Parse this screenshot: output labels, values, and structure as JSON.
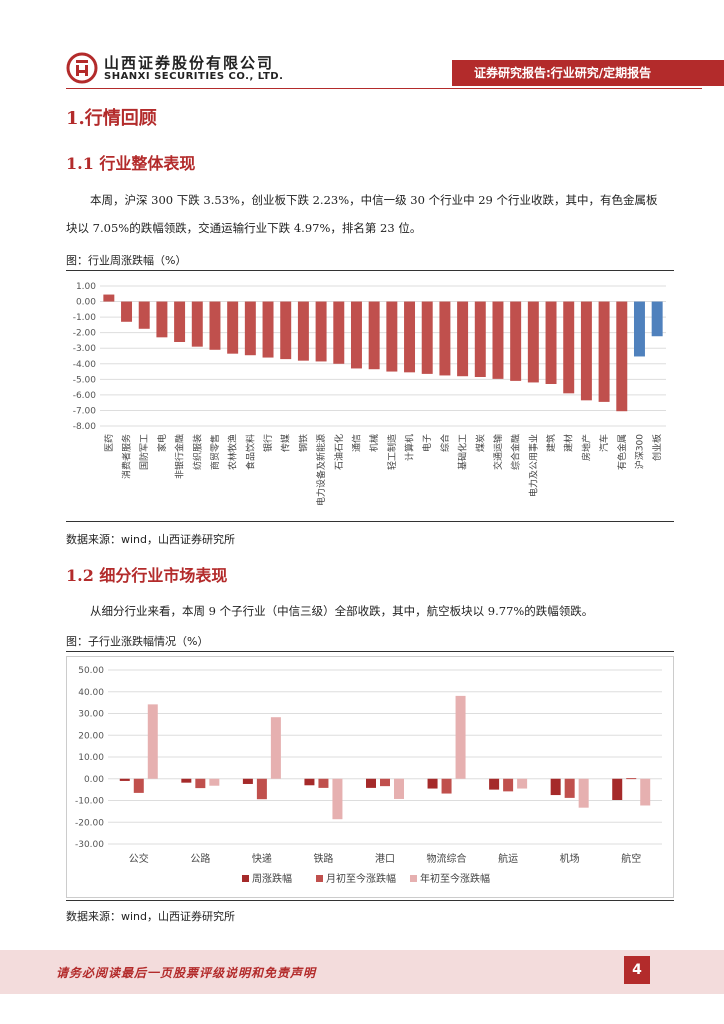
{
  "header": {
    "company_cn": "山西证券股份有限公司",
    "company_en": "SHANXI SECURITIES CO., LTD.",
    "report_type": "证券研究报告:行业研究/定期报告",
    "colors": {
      "brand": "#b32b2b",
      "footer_bg": "#f3dcdc"
    }
  },
  "section1": {
    "title": "1.行情回顾",
    "sub1": {
      "title": "1.1  行业整体表现",
      "paragraph": "本周，沪深 300 下跌 3.53%，创业板下跌 2.23%，中信一级 30 个行业中 29 个行业收跌，其中，有色金属板块以 7.05%的跌幅领跌，交通运输行业下跌 4.97%，排名第 23 位。",
      "figure_title": "图：行业周涨跌幅（%）",
      "source": "数据来源：wind，山西证券研究所"
    },
    "sub2": {
      "title": "1.2  细分行业市场表现",
      "paragraph": "从细分行业来看，本周 9 个子行业（中信三级）全部收跌，其中，航空板块以 9.77%的跌幅领跌。",
      "figure_title": "图：子行业涨跌幅情况（%）",
      "source": "数据来源：wind，山西证券研究所"
    }
  },
  "chart_data": [
    {
      "type": "bar",
      "title": "行业周涨跌幅（%）",
      "categories": [
        "医药",
        "消费者服务",
        "国防军工",
        "家电",
        "非银行金融",
        "纺织服装",
        "商贸零售",
        "农林牧渔",
        "食品饮料",
        "银行",
        "传媒",
        "钢铁",
        "电力设备及新能源",
        "石油石化",
        "通信",
        "机械",
        "轻工制造",
        "计算机",
        "电子",
        "综合",
        "基础化工",
        "煤炭",
        "交通运输",
        "综合金融",
        "电力及公用事业",
        "建筑",
        "建材",
        "房地产",
        "汽车",
        "有色金属",
        "沪深300",
        "创业板"
      ],
      "values": [
        0.45,
        -1.3,
        -1.75,
        -2.3,
        -2.6,
        -2.9,
        -3.1,
        -3.35,
        -3.45,
        -3.6,
        -3.7,
        -3.8,
        -3.85,
        -4.0,
        -4.3,
        -4.35,
        -4.5,
        -4.55,
        -4.65,
        -4.75,
        -4.8,
        -4.85,
        -4.97,
        -5.1,
        -5.2,
        -5.3,
        -5.9,
        -6.35,
        -6.45,
        -7.05,
        -3.53,
        -2.23
      ],
      "colors": {
        "industry": "#c0504d",
        "index": "#4f81bd"
      },
      "ylim": [
        -8.0,
        1.0
      ],
      "yticks": [
        "1.00",
        "0.00",
        "-1.00",
        "-2.00",
        "-3.00",
        "-4.00",
        "-5.00",
        "-6.00",
        "-7.00",
        "-8.00"
      ],
      "gridlines": true
    },
    {
      "type": "bar",
      "title": "子行业涨跌幅情况（%）",
      "categories": [
        "公交",
        "公路",
        "快递",
        "铁路",
        "港口",
        "物流综合",
        "航运",
        "机场",
        "航空"
      ],
      "series": [
        {
          "name": "周涨跌幅",
          "color": "#a52a2a",
          "values": [
            -1.0,
            -1.8,
            -2.4,
            -3.0,
            -4.2,
            -4.5,
            -5.0,
            -7.5,
            -9.77
          ]
        },
        {
          "name": "月初至今涨跌幅",
          "color": "#c0504d",
          "values": [
            -6.5,
            -4.3,
            -9.4,
            -4.2,
            -3.4,
            -6.8,
            -5.8,
            -8.8,
            0.3
          ]
        },
        {
          "name": "年初至今涨跌幅",
          "color": "#e6b0b0",
          "values": [
            34.2,
            -3.2,
            28.3,
            -18.6,
            -9.3,
            38.1,
            -4.5,
            -13.3,
            -12.3
          ]
        }
      ],
      "ylim": [
        -30,
        50
      ],
      "yticks": [
        "50.00",
        "40.00",
        "30.00",
        "20.00",
        "10.00",
        "0.00",
        "-10.00",
        "-20.00",
        "-30.00"
      ],
      "gridlines": true,
      "legend": "bottom"
    }
  ],
  "footer": {
    "disclaimer": "请务必阅读最后一页股票评级说明和免责声明",
    "page_number": "4"
  }
}
